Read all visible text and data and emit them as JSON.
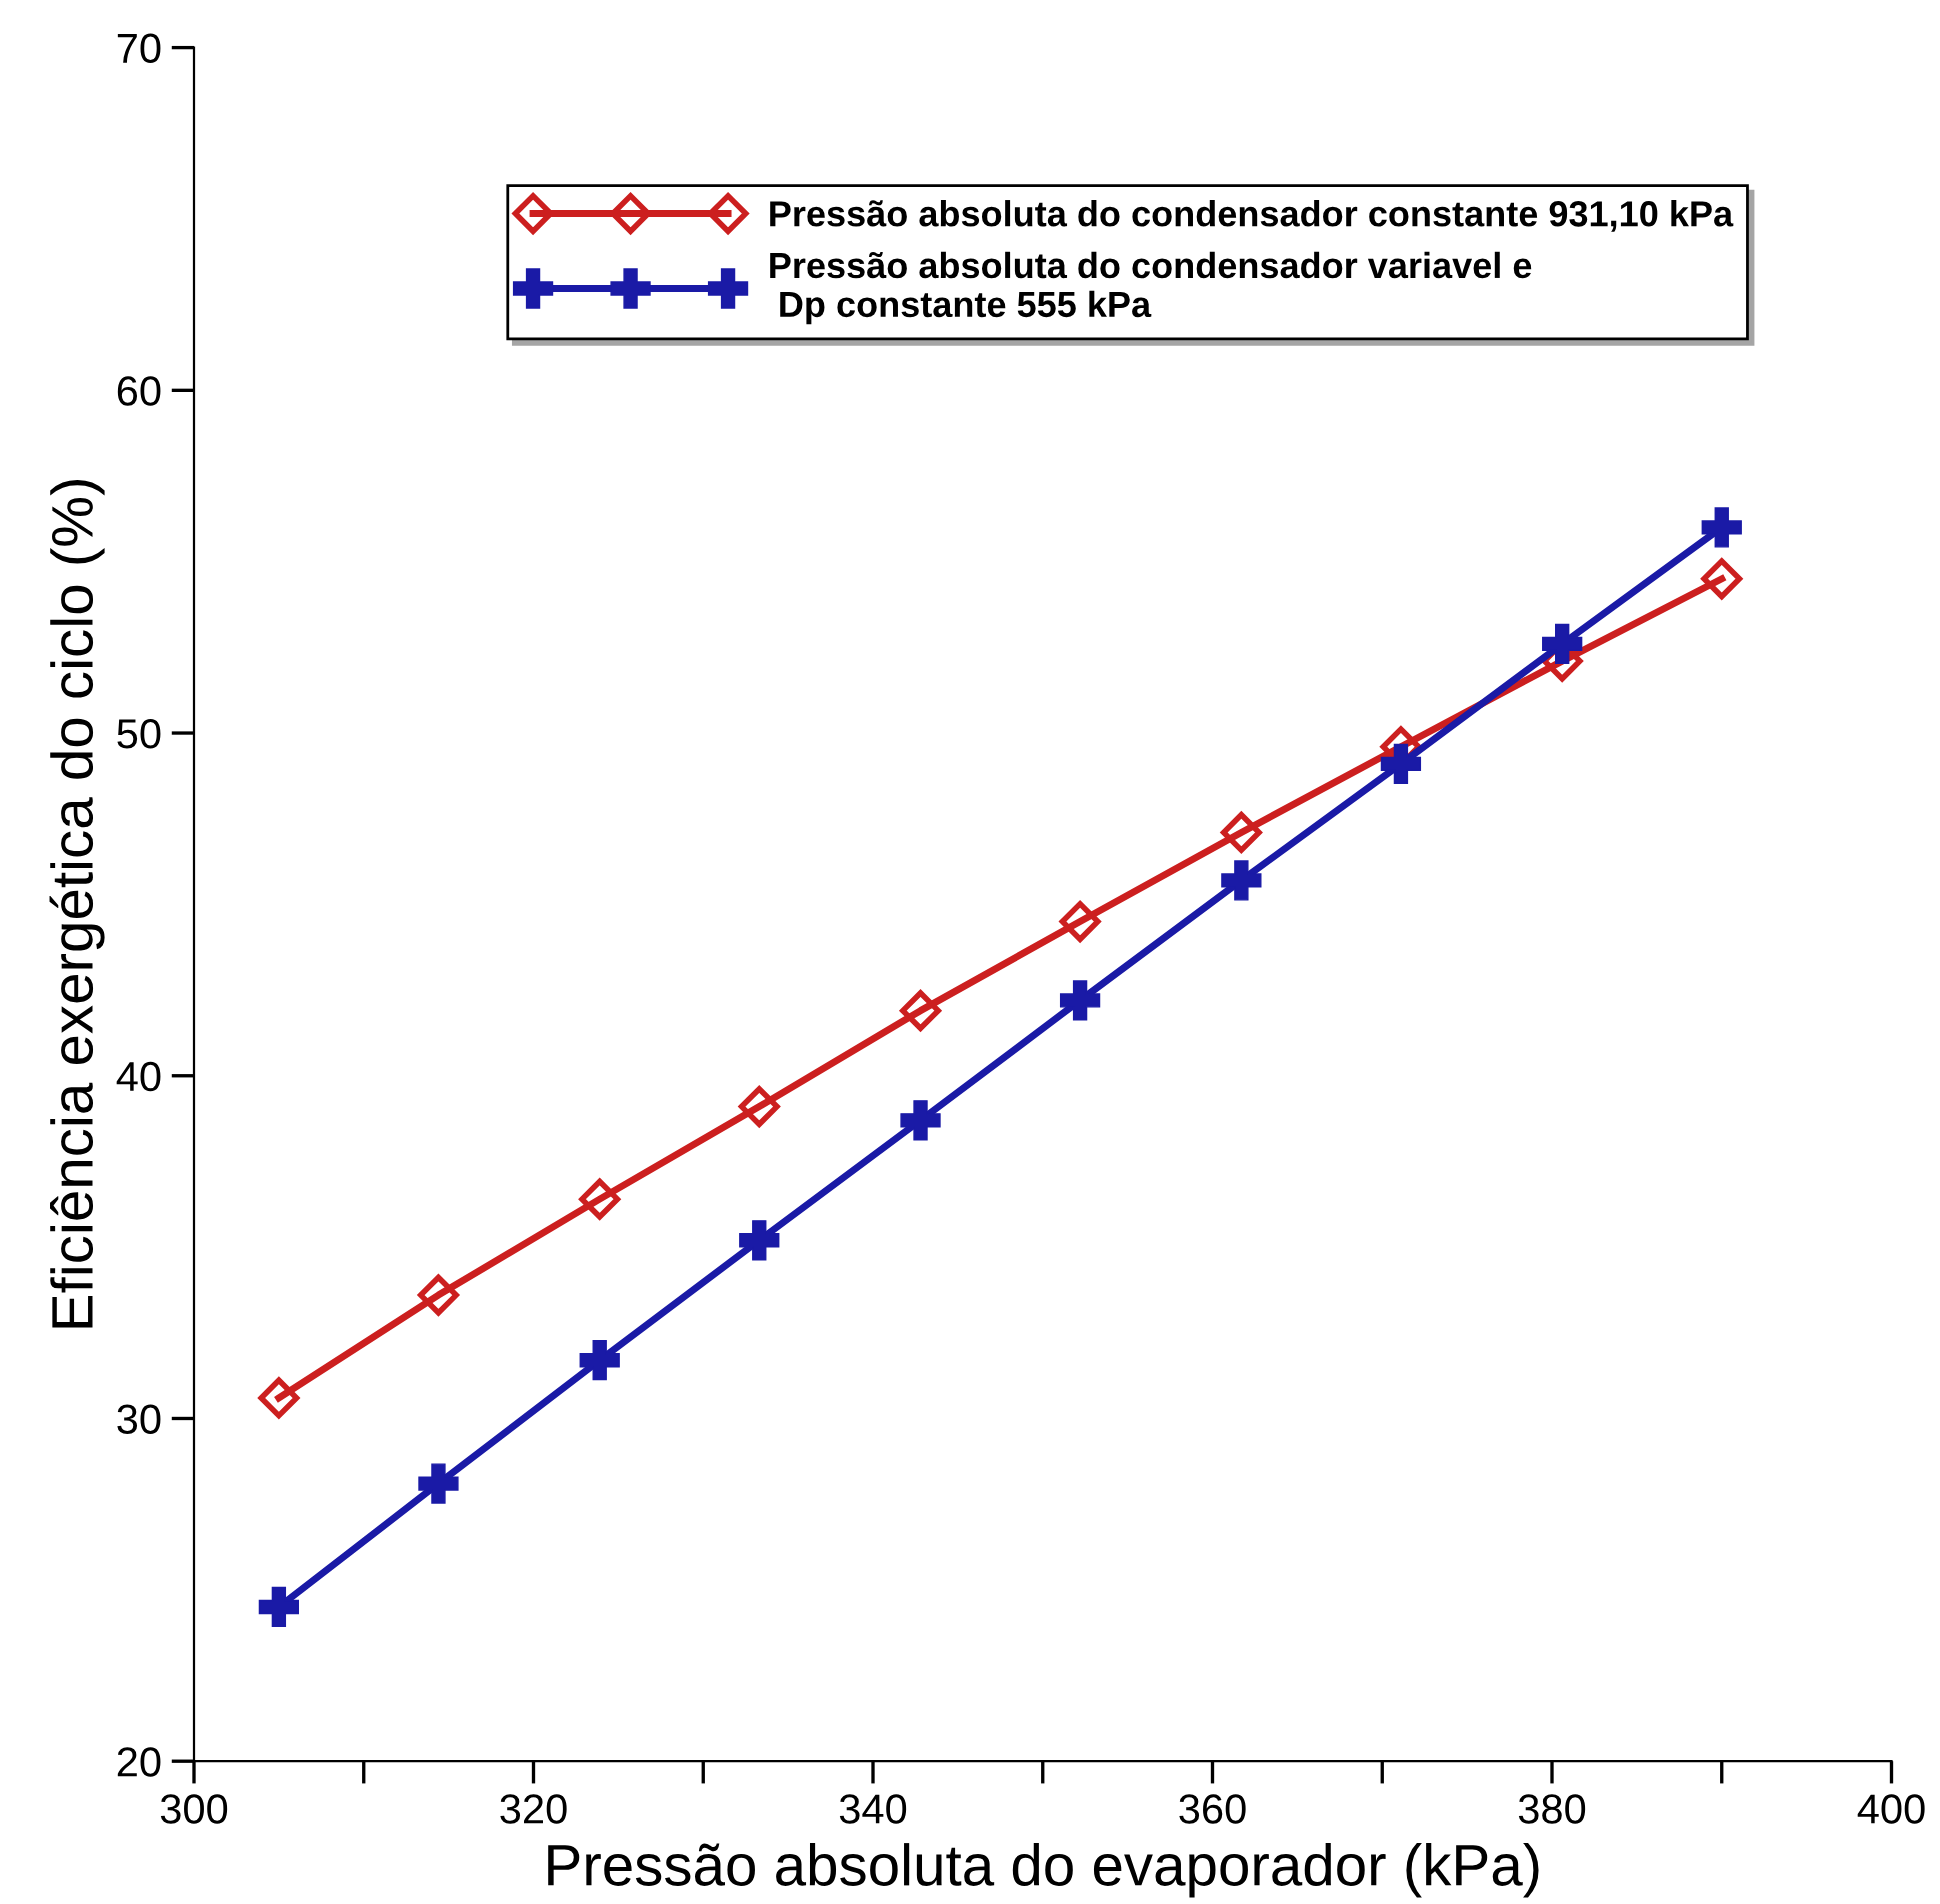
{
  "chart_data": {
    "type": "line",
    "xlabel": "Pressão absoluta do evaporador (kPa)",
    "ylabel": "Eficiência exergética do ciclo (%)",
    "x": [
      305,
      314.4,
      323.9,
      333.3,
      342.8,
      352.2,
      361.7,
      371.1,
      380.6,
      390
    ],
    "series": [
      {
        "name": "Pressão absoluta do condensador constante 931,10 kPa",
        "color": "#cc1f1f",
        "marker": "diamond",
        "values": [
          30.6,
          33.6,
          36.4,
          39.1,
          41.9,
          44.5,
          47.1,
          49.6,
          52.1,
          54.5
        ]
      },
      {
        "name": "Pressão absoluta do condensador variavel e\n Dp constante 555 kPa",
        "color": "#1a1aa6",
        "marker": "cross",
        "values": [
          24.5,
          28.1,
          31.7,
          35.2,
          38.7,
          42.2,
          45.7,
          49.1,
          52.6,
          56.0
        ]
      }
    ],
    "xlim": [
      300,
      400
    ],
    "xticks": [
      300,
      {
        "value": 310,
        "label": null
      },
      320,
      {
        "value": 330,
        "label": null
      },
      340,
      {
        "value": 350,
        "label": null
      },
      360,
      {
        "value": 370,
        "label": null
      },
      380,
      {
        "value": 390,
        "label": null
      },
      400
    ],
    "ylim": [
      20,
      70
    ],
    "yticks": [
      20,
      30,
      40,
      50,
      60,
      70
    ],
    "grid": false,
    "legend": "top",
    "line_style": "solid"
  }
}
